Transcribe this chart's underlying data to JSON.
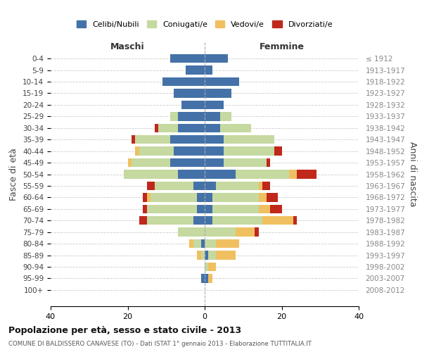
{
  "age_groups": [
    "0-4",
    "5-9",
    "10-14",
    "15-19",
    "20-24",
    "25-29",
    "30-34",
    "35-39",
    "40-44",
    "45-49",
    "50-54",
    "55-59",
    "60-64",
    "65-69",
    "70-74",
    "75-79",
    "80-84",
    "85-89",
    "90-94",
    "95-99",
    "100+"
  ],
  "birth_years": [
    "2008-2012",
    "2003-2007",
    "1998-2002",
    "1993-1997",
    "1988-1992",
    "1983-1987",
    "1978-1982",
    "1973-1977",
    "1968-1972",
    "1963-1967",
    "1958-1962",
    "1953-1957",
    "1948-1952",
    "1943-1947",
    "1938-1942",
    "1933-1937",
    "1928-1932",
    "1923-1927",
    "1918-1922",
    "1913-1917",
    "≤ 1912"
  ],
  "maschi": {
    "celibi": [
      9,
      5,
      11,
      8,
      6,
      7,
      7,
      9,
      8,
      9,
      7,
      3,
      2,
      2,
      3,
      0,
      1,
      0,
      0,
      1,
      0
    ],
    "coniugati": [
      0,
      0,
      0,
      0,
      0,
      2,
      5,
      9,
      9,
      10,
      14,
      10,
      12,
      13,
      12,
      7,
      2,
      1,
      0,
      0,
      0
    ],
    "vedovi": [
      0,
      0,
      0,
      0,
      0,
      0,
      0,
      0,
      1,
      1,
      0,
      0,
      1,
      0,
      0,
      0,
      1,
      1,
      0,
      0,
      0
    ],
    "divorziati": [
      0,
      0,
      0,
      0,
      0,
      0,
      1,
      1,
      0,
      0,
      0,
      2,
      1,
      1,
      2,
      0,
      0,
      0,
      0,
      0,
      0
    ]
  },
  "femmine": {
    "nubili": [
      6,
      2,
      9,
      7,
      5,
      4,
      4,
      5,
      5,
      5,
      8,
      3,
      2,
      2,
      2,
      0,
      0,
      1,
      0,
      1,
      0
    ],
    "coniugate": [
      0,
      0,
      0,
      0,
      0,
      3,
      8,
      13,
      13,
      11,
      14,
      11,
      12,
      12,
      13,
      8,
      3,
      2,
      1,
      0,
      0
    ],
    "vedove": [
      0,
      0,
      0,
      0,
      0,
      0,
      0,
      0,
      0,
      0,
      2,
      1,
      2,
      3,
      8,
      5,
      6,
      5,
      2,
      1,
      0
    ],
    "divorziate": [
      0,
      0,
      0,
      0,
      0,
      0,
      0,
      0,
      2,
      1,
      5,
      2,
      3,
      3,
      1,
      1,
      0,
      0,
      0,
      0,
      0
    ]
  },
  "colors": {
    "celibi": "#4472a8",
    "coniugati": "#c5d9a0",
    "vedovi": "#f0c060",
    "divorziati": "#c0281c"
  },
  "legend_labels": [
    "Celibi/Nubili",
    "Coniugati/e",
    "Vedovi/e",
    "Divorziati/e"
  ],
  "title": "Popolazione per età, sesso e stato civile - 2013",
  "subtitle": "COMUNE DI BALDISSERO CANAVESE (TO) - Dati ISTAT 1° gennaio 2013 - Elaborazione TUTTITALIA.IT",
  "ylabel_left": "Fasce di età",
  "ylabel_right": "Anni di nascita",
  "xlabel_maschi": "Maschi",
  "xlabel_femmine": "Femmine",
  "xlim": 40,
  "background_color": "#ffffff"
}
